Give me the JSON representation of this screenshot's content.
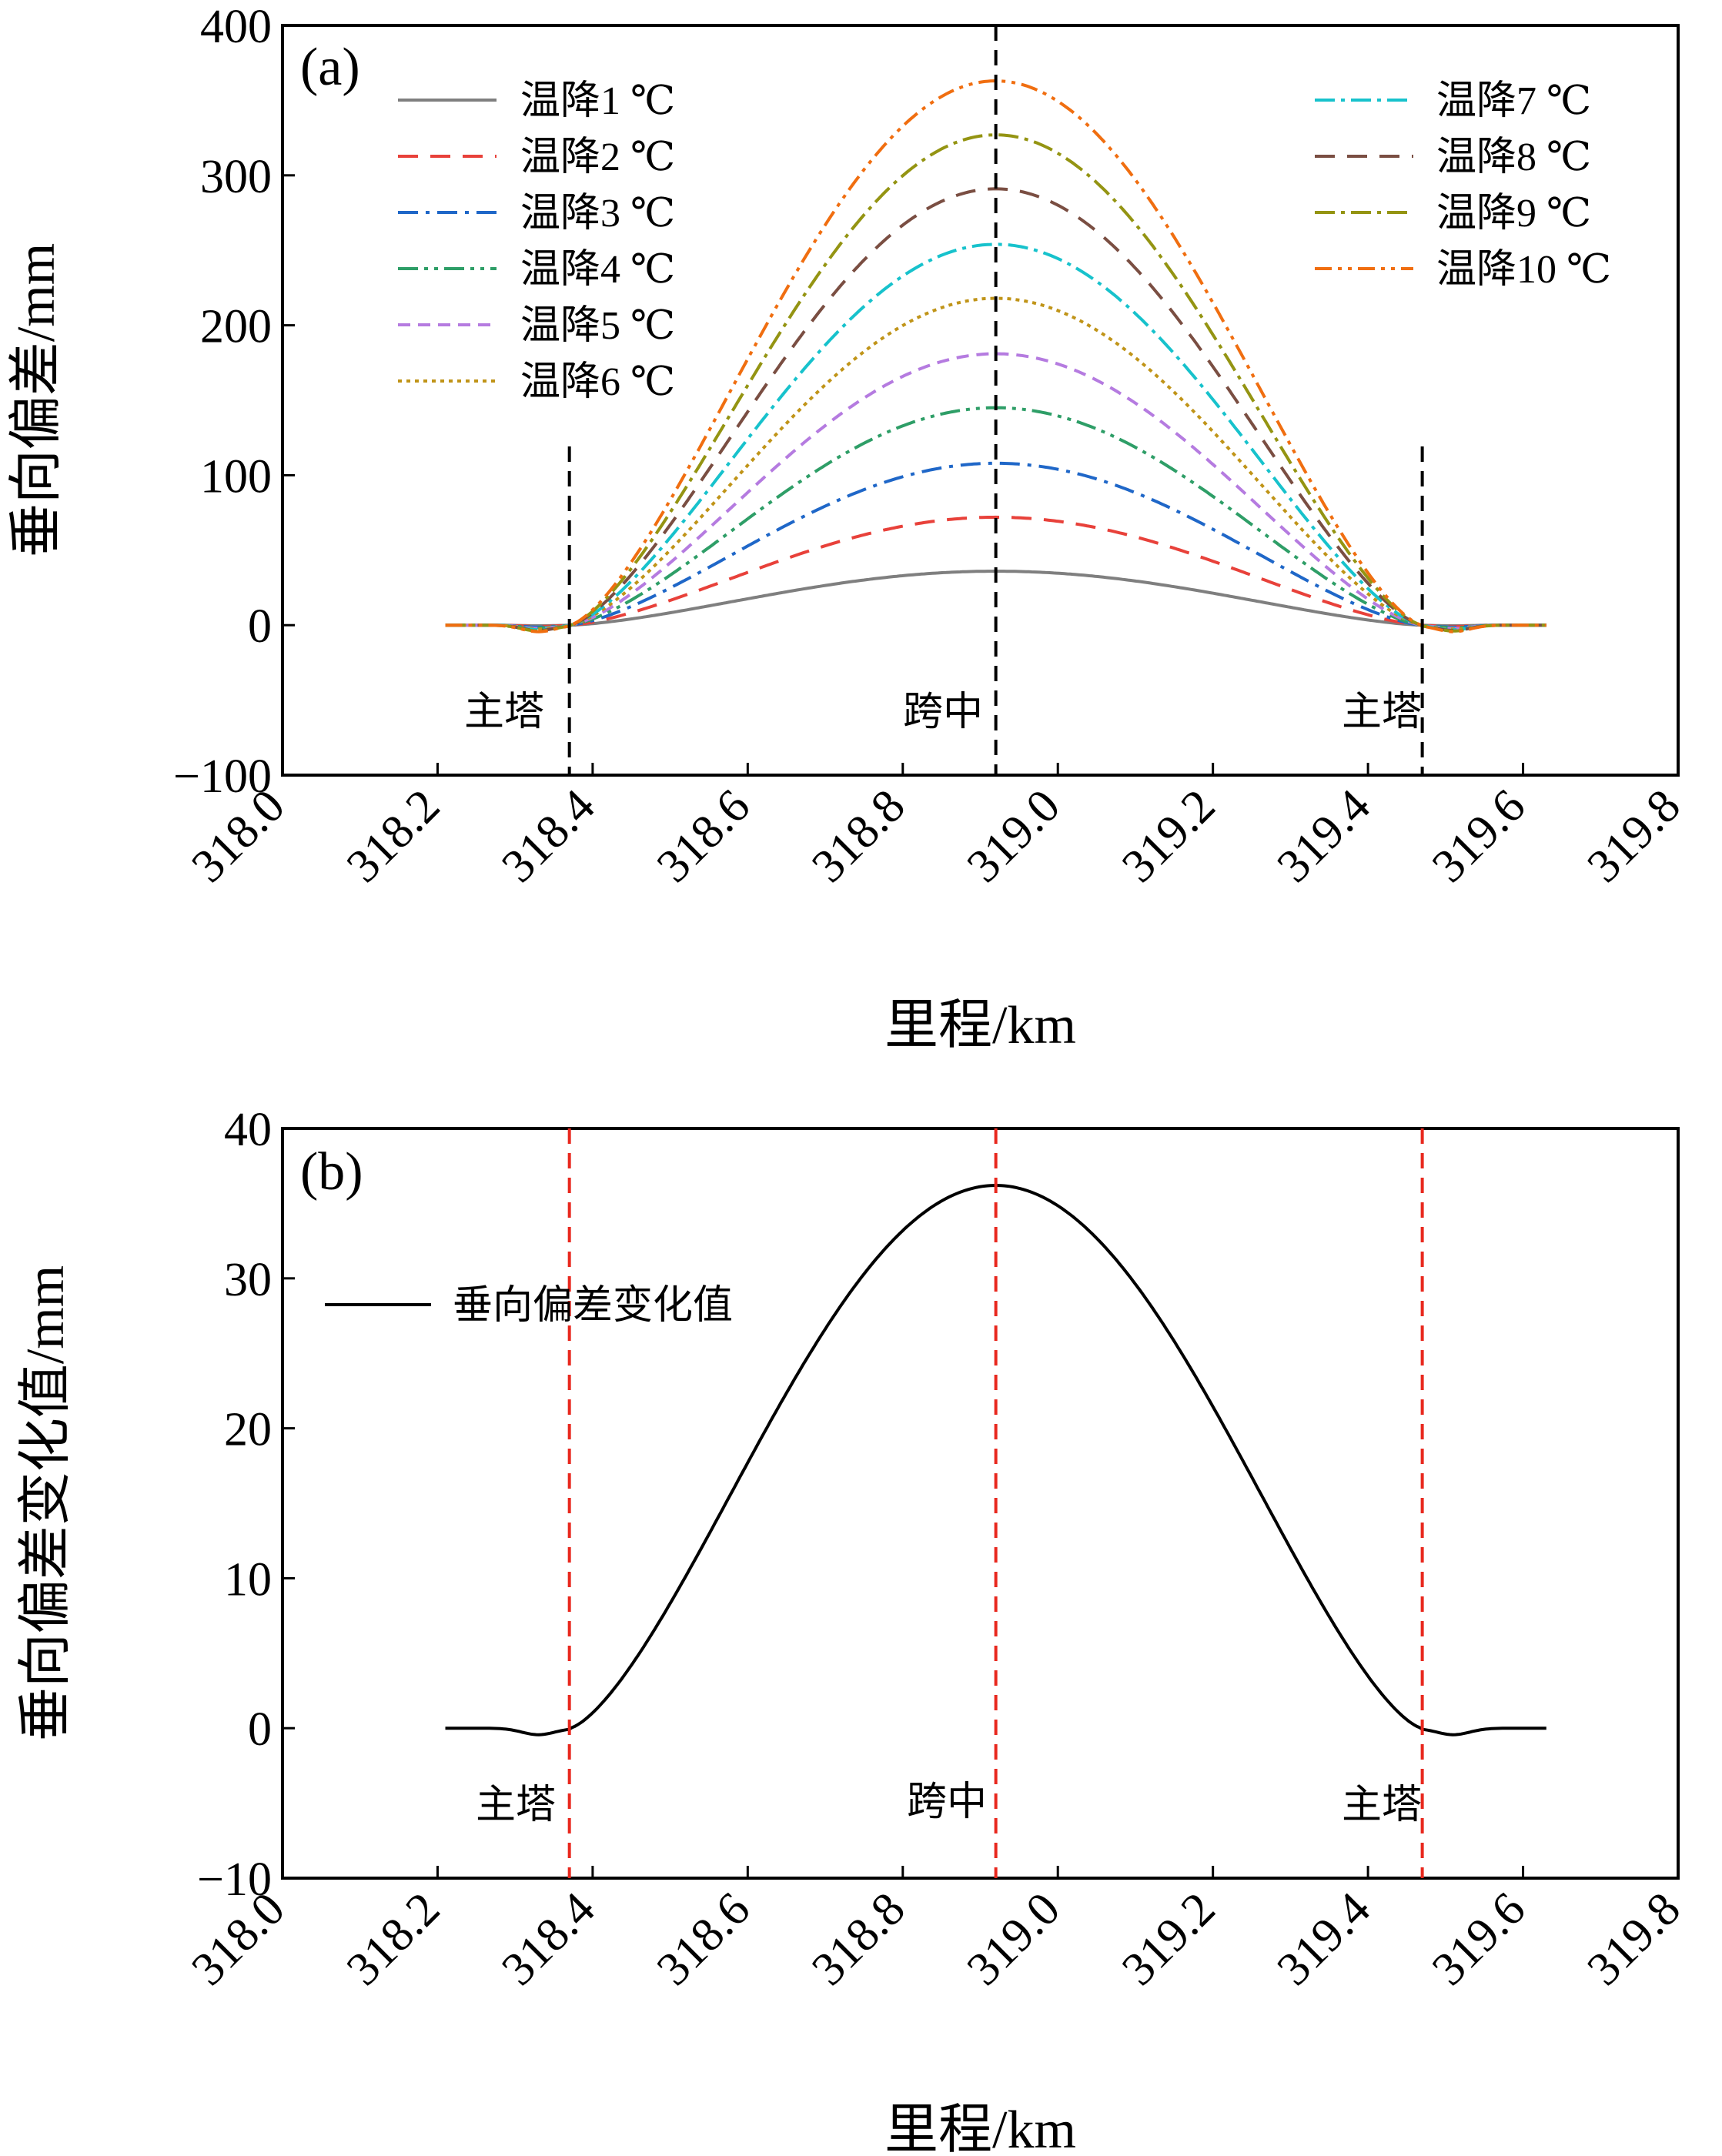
{
  "chart_data": [
    {
      "type": "line",
      "panel_label": "(a)",
      "xlabel": "里程/km",
      "ylabel": "垂向偏差/mm",
      "xlim": [
        318.0,
        319.8
      ],
      "ylim": [
        -100,
        400
      ],
      "xticks": [
        "318.0",
        "318.2",
        "318.4",
        "318.6",
        "318.8",
        "319.0",
        "319.2",
        "319.4",
        "319.6",
        "319.8"
      ],
      "yticks": [
        "−100",
        "0",
        "100",
        "200",
        "300",
        "400"
      ],
      "x_range": [
        318.21,
        319.63
      ],
      "tower_left": 318.37,
      "tower_right": 319.47,
      "mid_span": 318.92,
      "vlines": [
        {
          "x": 318.37,
          "label": "主塔",
          "color": "#000000"
        },
        {
          "x": 318.92,
          "label": "跨中",
          "color": "#000000"
        },
        {
          "x": 319.47,
          "label": "主塔",
          "color": "#000000"
        }
      ],
      "series": [
        {
          "name": "温降1 ℃",
          "peak": 36,
          "color": "#7f7f7f",
          "dash": "none"
        },
        {
          "name": "温降2 ℃",
          "peak": 72,
          "color": "#e8413a",
          "dash": "26,16"
        },
        {
          "name": "温降3 ℃",
          "peak": 108,
          "color": "#1f67c8",
          "dash": "26,10,5,10"
        },
        {
          "name": "温降4 ℃",
          "peak": 145,
          "color": "#2e9e67",
          "dash": "26,8,5,8,5,8"
        },
        {
          "name": "温降5 ℃",
          "peak": 181,
          "color": "#b57be0",
          "dash": "16,10"
        },
        {
          "name": "温降6 ℃",
          "peak": 218,
          "color": "#c09418",
          "dash": "5,6"
        },
        {
          "name": "温降7 ℃",
          "peak": 254,
          "color": "#17c2cc",
          "dash": "26,8,5,8"
        },
        {
          "name": "温降8 ℃",
          "peak": 291,
          "color": "#7a4e42",
          "dash": "26,16"
        },
        {
          "name": "温降9 ℃",
          "peak": 327,
          "color": "#949412",
          "dash": "26,8,5,8"
        },
        {
          "name": "温降10 ℃",
          "peak": 363,
          "color": "#f06e10",
          "dash": "22,8,5,8,5,8"
        }
      ]
    },
    {
      "type": "line",
      "panel_label": "(b)",
      "xlabel": "里程/km",
      "ylabel": "垂向偏差变化值/mm",
      "xlim": [
        318.0,
        319.8
      ],
      "ylim": [
        -10,
        40
      ],
      "xticks": [
        "318.0",
        "318.2",
        "318.4",
        "318.6",
        "318.8",
        "319.0",
        "319.2",
        "319.4",
        "319.6",
        "319.8"
      ],
      "yticks": [
        "−10",
        "0",
        "10",
        "20",
        "30",
        "40"
      ],
      "x_range": [
        318.21,
        319.63
      ],
      "tower_left": 318.37,
      "tower_right": 319.47,
      "mid_span": 318.92,
      "vlines": [
        {
          "x": 318.37,
          "label": "主塔",
          "color": "#e8281e"
        },
        {
          "x": 318.92,
          "label": "跨中",
          "color": "#e8281e"
        },
        {
          "x": 319.47,
          "label": "主塔",
          "color": "#e8281e"
        }
      ],
      "series": [
        {
          "name": "垂向偏差变化值",
          "peak": 36.2,
          "color": "#000000",
          "dash": "none"
        }
      ]
    }
  ]
}
